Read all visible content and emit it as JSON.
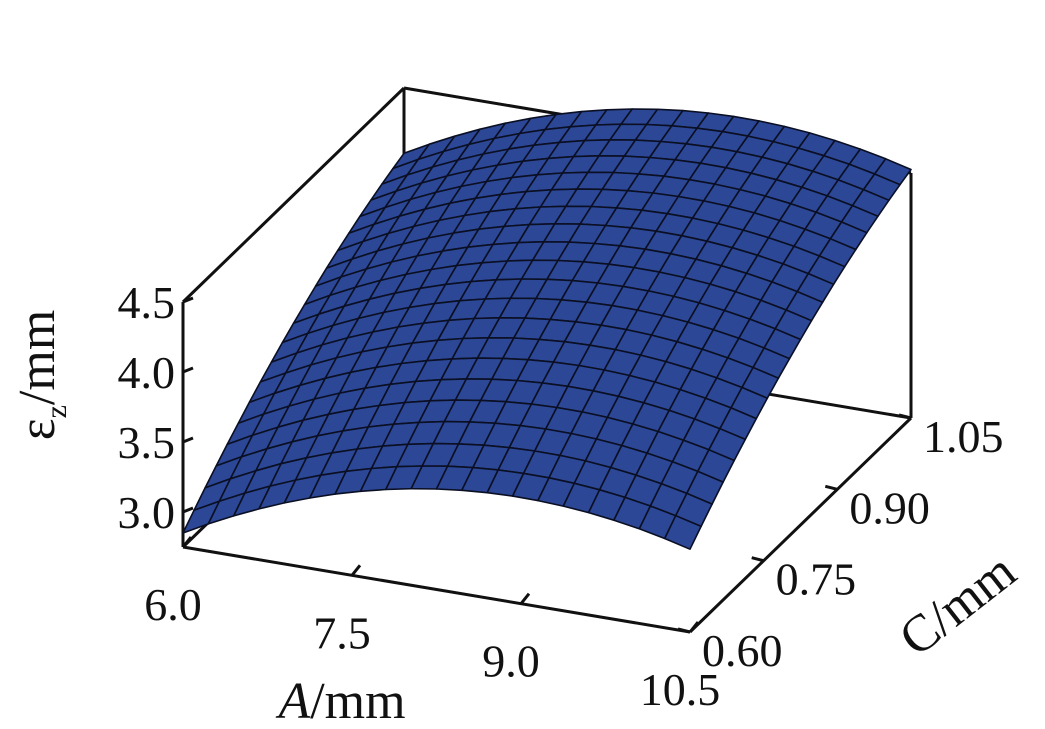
{
  "chart_data": {
    "type": "surface",
    "title": "",
    "xlabel": {
      "italic": "A",
      "unit": "/mm"
    },
    "ylabel": {
      "main": "C",
      "unit": "/mm"
    },
    "zlabel": {
      "main": "ε",
      "sub": "z",
      "unit": "/mm"
    },
    "xlim": [
      6.0,
      10.5
    ],
    "ylim": [
      0.6,
      1.05
    ],
    "zlim": [
      2.75,
      4.5
    ],
    "x_ticks": [
      "6.0",
      "7.5",
      "9.0",
      "10.5"
    ],
    "y_ticks": [
      "0.60",
      "0.75",
      "0.90",
      "1.05"
    ],
    "z_ticks": [
      "3.0",
      "3.5",
      "4.0",
      "4.5"
    ],
    "grid": false,
    "surface_color": "#2b4795",
    "grid_line_color": "#0b0f24",
    "x": [
      6.0,
      6.225,
      6.45,
      6.675,
      6.9,
      7.125,
      7.35,
      7.575,
      7.8,
      8.025,
      8.25,
      8.475,
      8.7,
      8.925,
      9.15,
      9.375,
      9.6,
      9.825,
      10.05,
      10.275,
      10.5
    ],
    "y": [
      0.6,
      0.6225,
      0.645,
      0.6675,
      0.69,
      0.7125,
      0.735,
      0.7575,
      0.78,
      0.8025,
      0.825,
      0.8475,
      0.87,
      0.8925,
      0.915,
      0.9375,
      0.96,
      0.9825,
      1.005,
      1.0275,
      1.05
    ],
    "z_model": {
      "form": "z = z0 + a*(A-6) + b*(A-6)^2 + c*(C-0.6) + d*(C-0.6)^2",
      "z0": 2.85,
      "a": 0.44,
      "b": -0.0735,
      "c": 3.89,
      "d": -2.8
    }
  }
}
